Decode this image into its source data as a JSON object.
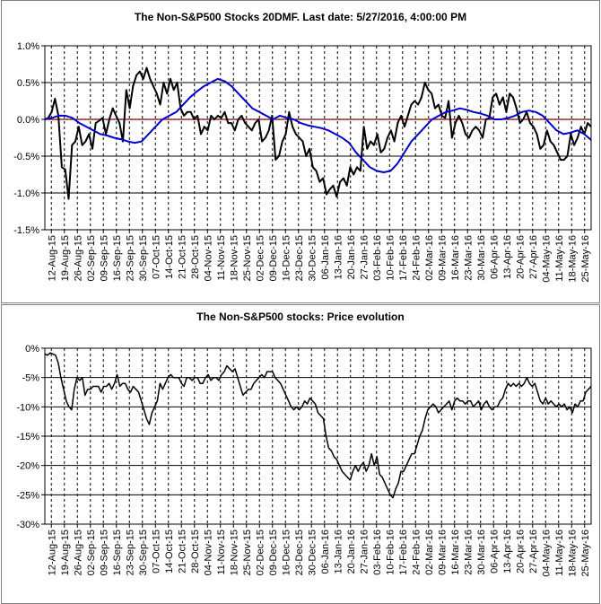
{
  "x_labels": [
    "12-Aug-15",
    "19-Aug-15",
    "26-Aug-15",
    "02-Sep-15",
    "09-Sep-15",
    "16-Sep-15",
    "23-Sep-15",
    "30-Sep-15",
    "07-Oct-15",
    "14-Oct-15",
    "21-Oct-15",
    "28-Oct-15",
    "04-Nov-15",
    "11-Nov-15",
    "18-Nov-15",
    "25-Nov-15",
    "02-Dec-15",
    "09-Dec-15",
    "16-Dec-15",
    "23-Dec-15",
    "30-Dec-15",
    "06-Jan-16",
    "13-Jan-16",
    "20-Jan-16",
    "27-Jan-16",
    "03-Feb-16",
    "10-Feb-16",
    "17-Feb-16",
    "24-Feb-16",
    "02-Mar-16",
    "09-Mar-16",
    "16-Mar-16",
    "23-Mar-16",
    "30-Mar-16",
    "06-Apr-16",
    "13-Apr-16",
    "20-Apr-16",
    "27-Apr-16",
    "04-May-16",
    "11-May-16",
    "18-May-16",
    "25-May-16"
  ],
  "chart_data": [
    {
      "type": "line",
      "title": "The Non-S&P500 Stocks 20DMF. Last date: 5/27/2016, 4:00:00 PM",
      "y_tick_labels": [
        "1.0%",
        "0.5%",
        "0.0%",
        "-0.5%",
        "-1.0%",
        "-1.5%"
      ],
      "ylim": [
        -1.5,
        1.0
      ],
      "grid": true,
      "colors": {
        "daily": "#000000",
        "average": "#0000cc",
        "zero": "#cc0000"
      },
      "series": [
        {
          "values": [
            0,
            0.02,
            0.1,
            0.28,
            0.05,
            -0.65,
            -0.68,
            -1.08,
            -0.35,
            -0.3,
            -0.1,
            -0.35,
            -0.3,
            -0.2,
            -0.4,
            -0.05,
            -0.02,
            0.02,
            -0.2,
            0,
            0.15,
            0.05,
            -0.05,
            -0.3,
            0.4,
            0.15,
            0.45,
            0.6,
            0.65,
            0.55,
            0.7,
            0.55,
            0.45,
            0.35,
            0.2,
            0.5,
            0.35,
            0.55,
            0.4,
            0.5,
            0.15,
            0.05,
            0.1,
            0.1,
            0,
            0.05,
            -0.2,
            -0.1,
            -0.15,
            0.05,
            0,
            0.05,
            0.02,
            0.1,
            -0.05,
            -0.05,
            -0.15,
            0,
            0.05,
            -0.05,
            -0.1,
            -0.15,
            -0.05,
            0,
            -0.3,
            -0.25,
            -0.15,
            0.05,
            -0.55,
            -0.5,
            -0.3,
            -0.2,
            0.1,
            -0.1,
            -0.2,
            -0.25,
            -0.3,
            -0.5,
            -0.4,
            -0.65,
            -0.7,
            -0.85,
            -0.8,
            -1.02,
            -0.95,
            -0.9,
            -1.05,
            -0.85,
            -0.8,
            -0.9,
            -0.65,
            -0.75,
            -0.65,
            -0.7,
            -0.1,
            -0.4,
            -0.3,
            -0.35,
            -0.2,
            -0.45,
            -0.4,
            -0.25,
            -0.15,
            -0.3,
            -0.05,
            0.05,
            -0.1,
            0.05,
            0.2,
            0.25,
            0.2,
            0.3,
            0.5,
            0.4,
            0.35,
            0.15,
            0.2,
            0.05,
            0.02,
            0.25,
            -0.25,
            -0.05,
            0.05,
            -0.05,
            -0.2,
            -0.25,
            -0.15,
            -0.1,
            -0.15,
            -0.25,
            0,
            0.02,
            0.3,
            0.35,
            0.2,
            0.3,
            0.1,
            0.35,
            0.3,
            0.15,
            -0.05,
            0,
            0.1,
            -0.05,
            -0.1,
            -0.2,
            -0.4,
            -0.35,
            -0.15,
            -0.3,
            -0.35,
            -0.45,
            -0.55,
            -0.55,
            -0.5,
            -0.2,
            -0.35,
            -0.25,
            -0.1,
            -0.2,
            -0.05,
            -0.1
          ]
        },
        {
          "values": [
            0,
            0.02,
            0.05,
            0.05,
            0.02,
            -0.05,
            -0.1,
            -0.15,
            -0.2,
            -0.22,
            -0.25,
            -0.27,
            -0.3,
            -0.32,
            -0.3,
            -0.2,
            -0.1,
            0,
            0.05,
            0.1,
            0.2,
            0.3,
            0.38,
            0.45,
            0.5,
            0.55,
            0.52,
            0.45,
            0.35,
            0.25,
            0.15,
            0.1,
            0.05,
            0,
            0.05,
            0.02,
            0,
            -0.05,
            -0.08,
            -0.1,
            -0.12,
            -0.15,
            -0.2,
            -0.25,
            -0.32,
            -0.45,
            -0.55,
            -0.65,
            -0.7,
            -0.72,
            -0.7,
            -0.6,
            -0.45,
            -0.3,
            -0.2,
            -0.1,
            0,
            0.05,
            0.1,
            0.12,
            0.15,
            0.13,
            0.1,
            0.08,
            0.05,
            0,
            0,
            0.02,
            0.05,
            0.1,
            0.12,
            0.1,
            0.05,
            -0.05,
            -0.15,
            -0.2,
            -0.18,
            -0.15,
            -0.2,
            -0.28
          ]
        }
      ]
    },
    {
      "type": "line",
      "title": "The Non-S&P500 stocks: Price evolution",
      "y_tick_labels": [
        "0%",
        "-5%",
        "-10%",
        "-15%",
        "-20%",
        "-25%",
        "-30%"
      ],
      "ylim": [
        -30,
        0
      ],
      "grid": true,
      "colors": {
        "line": "#000000"
      },
      "series": [
        {
          "values": [
            -1,
            -1.2,
            -0.8,
            -1,
            -1.2,
            -2.5,
            -5,
            -7,
            -9,
            -10,
            -10.5,
            -7,
            -5,
            -5.5,
            -5,
            -8,
            -7,
            -7,
            -6.5,
            -6.5,
            -6.5,
            -7.5,
            -6.5,
            -6.5,
            -6,
            -7,
            -6,
            -4.5,
            -6.5,
            -6,
            -6,
            -7,
            -7.5,
            -6.5,
            -7,
            -7.5,
            -9,
            -10.5,
            -12,
            -13,
            -11,
            -10,
            -9,
            -6,
            -7,
            -6,
            -5,
            -4.5,
            -5,
            -5,
            -5,
            -6,
            -6.5,
            -5,
            -5,
            -5.5,
            -5,
            -5,
            -6,
            -6,
            -5,
            -4.5,
            -5.5,
            -5,
            -5,
            -5.5,
            -4.5,
            -4,
            -3,
            -3.5,
            -4,
            -3.5,
            -5,
            -6.5,
            -8,
            -7.5,
            -7,
            -7,
            -6,
            -5.5,
            -5,
            -4.5,
            -5,
            -4,
            -4,
            -4,
            -5,
            -5.5,
            -6,
            -7,
            -8,
            -9,
            -10,
            -10.5,
            -10,
            -10.5,
            -10,
            -9,
            -9.5,
            -8.5,
            -9,
            -9.5,
            -11,
            -11.5,
            -12,
            -15,
            -17,
            -17.5,
            -18.5,
            -19,
            -20,
            -21,
            -21.5,
            -22,
            -22.5,
            -21,
            -20,
            -21,
            -20,
            -19.5,
            -21,
            -20,
            -18,
            -20,
            -18.5,
            -21.5,
            -22,
            -23,
            -24,
            -25,
            -25.5,
            -24,
            -23,
            -21,
            -21,
            -20,
            -19,
            -18,
            -18,
            -16.5,
            -15,
            -14,
            -12,
            -10.5,
            -10,
            -9.5,
            -10,
            -11,
            -10.5,
            -10,
            -9.5,
            -9,
            -10.5,
            -9,
            -8.5,
            -9,
            -9,
            -9.5,
            -9,
            -9,
            -10,
            -9.5,
            -9,
            -10.5,
            -9.5,
            -9,
            -10,
            -10.5,
            -10,
            -10,
            -9,
            -8.5,
            -7,
            -6,
            -6.5,
            -6,
            -6.5,
            -6,
            -6.5,
            -6,
            -5,
            -6,
            -6.5,
            -6,
            -7.5,
            -9,
            -9.5,
            -8.5,
            -9.5,
            -9,
            -9.5,
            -10,
            -9.5,
            -10,
            -9.5,
            -10.5,
            -10,
            -11,
            -9.5,
            -10,
            -9,
            -9,
            -7.5,
            -7,
            -6.5
          ]
        }
      ]
    }
  ]
}
